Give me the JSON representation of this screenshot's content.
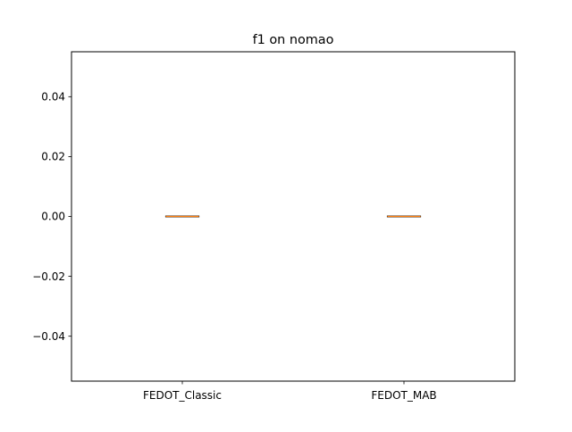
{
  "chart_data": {
    "type": "box",
    "title": "f1 on nomao",
    "xlabel": "",
    "ylabel": "",
    "categories": [
      "FEDOT_Classic",
      "FEDOT_MAB"
    ],
    "boxes": [
      {
        "category": "FEDOT_Classic",
        "min": 0.0,
        "q1": 0.0,
        "median": 0.0,
        "q3": 0.0,
        "max": 0.0
      },
      {
        "category": "FEDOT_MAB",
        "min": 0.0,
        "q1": 0.0,
        "median": 0.0,
        "q3": 0.0,
        "max": 0.0
      }
    ],
    "ylim": [
      -0.055,
      0.055
    ],
    "yticks": [
      -0.04,
      -0.02,
      0.0,
      0.02,
      0.04
    ],
    "ytick_labels": [
      "−0.04",
      "−0.02",
      "0.00",
      "0.02",
      "0.04"
    ],
    "grid": false,
    "colors": {
      "box": "#000000",
      "median": "#ff7f0e",
      "axes": "#000000"
    }
  }
}
